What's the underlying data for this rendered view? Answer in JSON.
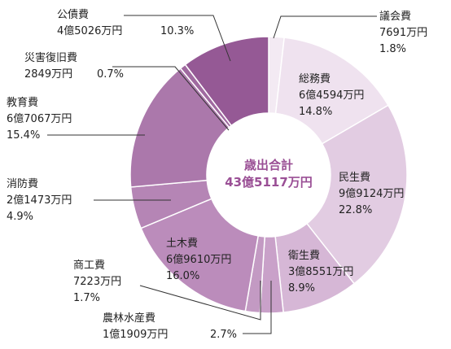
{
  "chart_data": {
    "type": "pie",
    "center_label": {
      "line1": "歳出合計",
      "line2": "43億5117万円"
    },
    "slices": [
      {
        "name": "議会費",
        "amount": "7691万円",
        "percent": 1.8,
        "percent_label": "1.8%",
        "color": "#f3eaf3"
      },
      {
        "name": "総務費",
        "amount": "6億4594万円",
        "percent": 14.8,
        "percent_label": "14.8%",
        "color": "#efe2ef"
      },
      {
        "name": "民生費",
        "amount": "9億9124万円",
        "percent": 22.8,
        "percent_label": "22.8%",
        "color": "#e2cce2"
      },
      {
        "name": "衛生費",
        "amount": "3億8551万円",
        "percent": 8.9,
        "percent_label": "8.9%",
        "color": "#d6b7d6"
      },
      {
        "name": "農林水産費",
        "amount": "1億1909万円",
        "percent": 2.7,
        "percent_label": "2.7%",
        "color": "#c9a1c9"
      },
      {
        "name": "商工費",
        "amount": "7223万円",
        "percent": 1.7,
        "percent_label": "1.7%",
        "color": "#c39ac3"
      },
      {
        "name": "土木費",
        "amount": "6億9610万円",
        "percent": 16.0,
        "percent_label": "16.0%",
        "color": "#bb8cbb"
      },
      {
        "name": "消防費",
        "amount": "2億1473万円",
        "percent": 4.9,
        "percent_label": "4.9%",
        "color": "#b585b5"
      },
      {
        "name": "教育費",
        "amount": "6億7067万円",
        "percent": 15.4,
        "percent_label": "15.4%",
        "color": "#ab78ab"
      },
      {
        "name": "災害復旧費",
        "amount": "2849万円",
        "percent": 0.7,
        "percent_label": "0.7%",
        "color": "#a06aa0"
      },
      {
        "name": "公債費",
        "amount": "4億5026万円",
        "percent": 10.3,
        "percent_label": "10.3%",
        "color": "#955995"
      }
    ]
  }
}
